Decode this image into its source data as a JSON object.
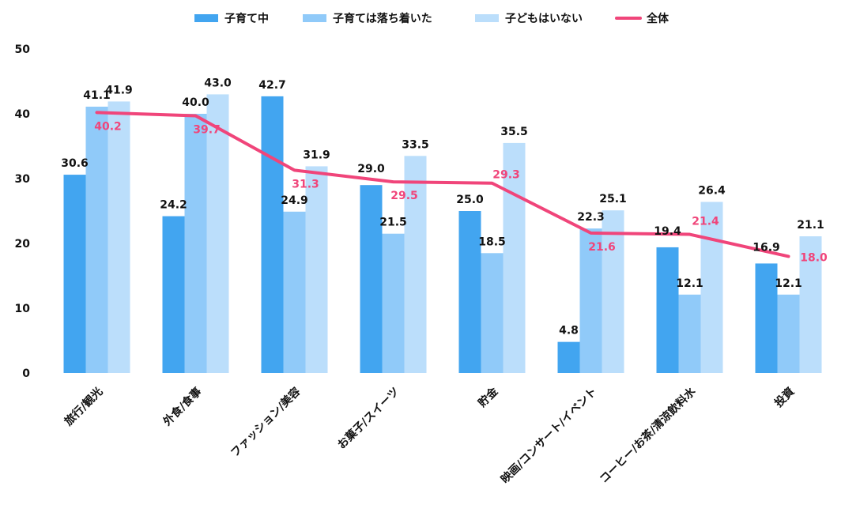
{
  "chart_data": {
    "type": "bar",
    "categories": [
      "旅行/観光",
      "外食/食事",
      "ファッション/美容",
      "お菓子/スイーツ",
      "貯金",
      "映画/コンサート/イベント",
      "コーヒー/お茶/清涼飲料水",
      "投資"
    ],
    "series": [
      {
        "name": "子育て中",
        "type": "bar",
        "color": "#42a5f0",
        "values": [
          30.6,
          24.2,
          42.7,
          29.0,
          25.0,
          4.8,
          19.4,
          16.9
        ]
      },
      {
        "name": "子育ては落ち着いた",
        "type": "bar",
        "color": "#90caf9",
        "values": [
          41.1,
          40.0,
          24.9,
          21.5,
          18.5,
          22.3,
          12.1,
          12.1
        ]
      },
      {
        "name": "子どもはいない",
        "type": "bar",
        "color": "#bbdefb",
        "values": [
          41.9,
          43.0,
          31.9,
          33.5,
          35.5,
          25.1,
          26.4,
          21.1
        ]
      },
      {
        "name": "全体",
        "type": "line",
        "color": "#f0457a",
        "values": [
          40.2,
          39.7,
          31.3,
          29.5,
          29.3,
          21.6,
          21.4,
          18.0
        ]
      }
    ],
    "ylim": [
      0,
      50
    ],
    "yticks": [
      0,
      10,
      20,
      30,
      40,
      50
    ],
    "grid": false,
    "legend_position": "top-center"
  }
}
